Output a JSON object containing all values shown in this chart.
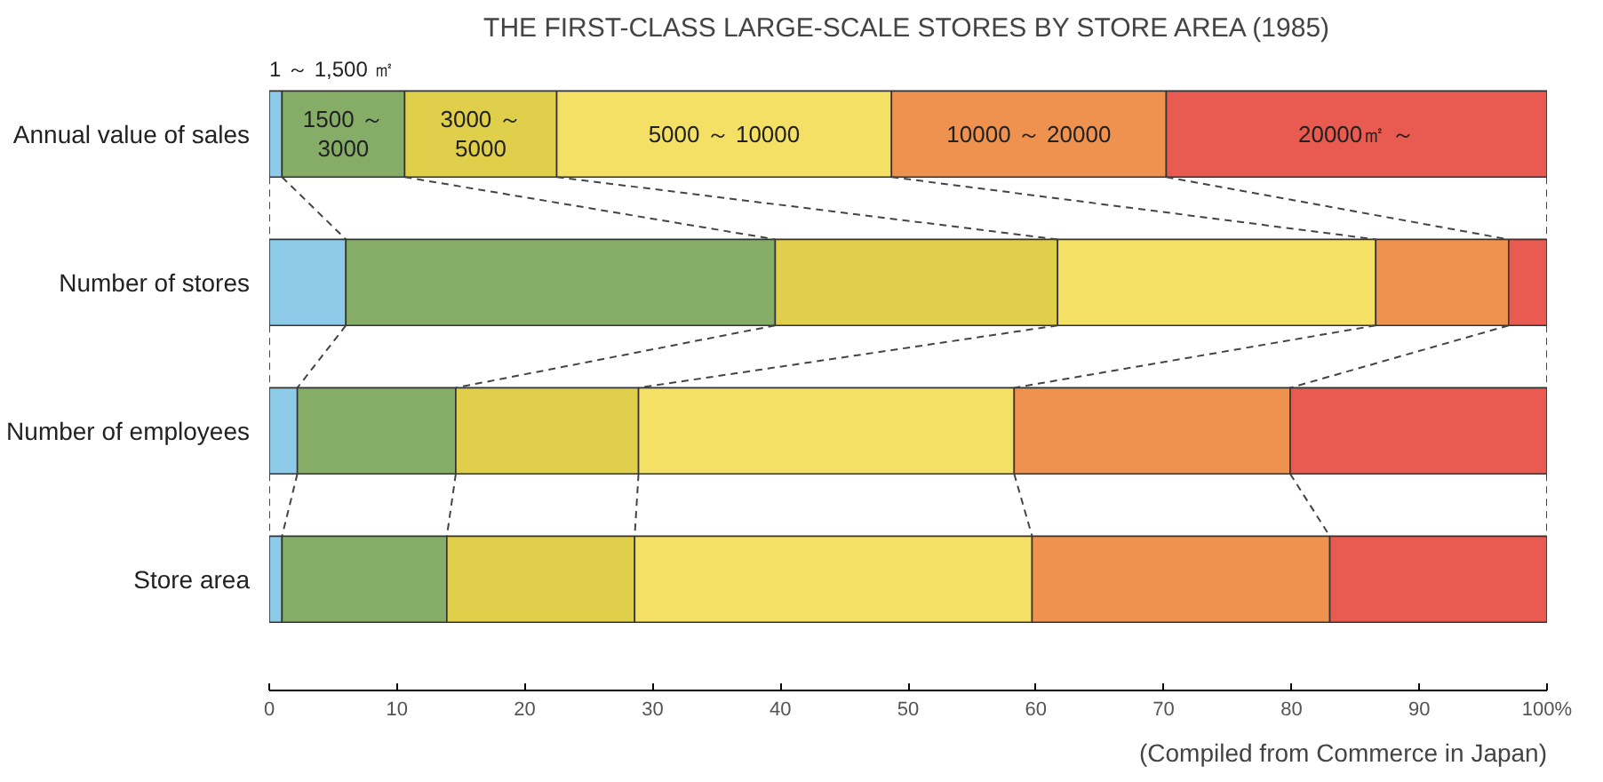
{
  "chart_data": {
    "type": "bar",
    "orientation": "horizontal",
    "stacked": true,
    "title": "THE FIRST-CLASS LARGE-SCALE STORES BY STORE AREA (1985)",
    "annotations": [
      "(Compiled from Commerce in Japan)"
    ],
    "categories": [
      "Annual value of sales",
      "Number of stores",
      "Number of employees",
      "Store area"
    ],
    "series": [
      {
        "name": "1 ～ 1,500 ㎡",
        "color": "#8ecbe8",
        "values": [
          1.0,
          6.0,
          2.2,
          1.0
        ]
      },
      {
        "name": "1500 ～ 3000",
        "color": "#86ad68",
        "values": [
          9.6,
          33.6,
          12.4,
          12.9
        ]
      },
      {
        "name": "3000 ～ 5000",
        "color": "#e0cf4a",
        "values": [
          11.9,
          22.1,
          14.3,
          14.7
        ]
      },
      {
        "name": "5000 ～ 10000",
        "color": "#f3e064",
        "values": [
          26.2,
          24.9,
          29.4,
          31.1
        ]
      },
      {
        "name": "10000 ～ 20000",
        "color": "#f0924f",
        "values": [
          21.5,
          10.4,
          21.6,
          23.3
        ]
      },
      {
        "name": "20000㎡ ～",
        "color": "#e95a50",
        "values": [
          29.8,
          3.0,
          20.1,
          17.0
        ]
      }
    ],
    "xlim": [
      0,
      100
    ],
    "xticks": [
      0,
      10,
      20,
      30,
      40,
      50,
      60,
      70,
      80,
      90,
      {
        "value": 100,
        "label": "100%"
      }
    ],
    "grid": false
  }
}
